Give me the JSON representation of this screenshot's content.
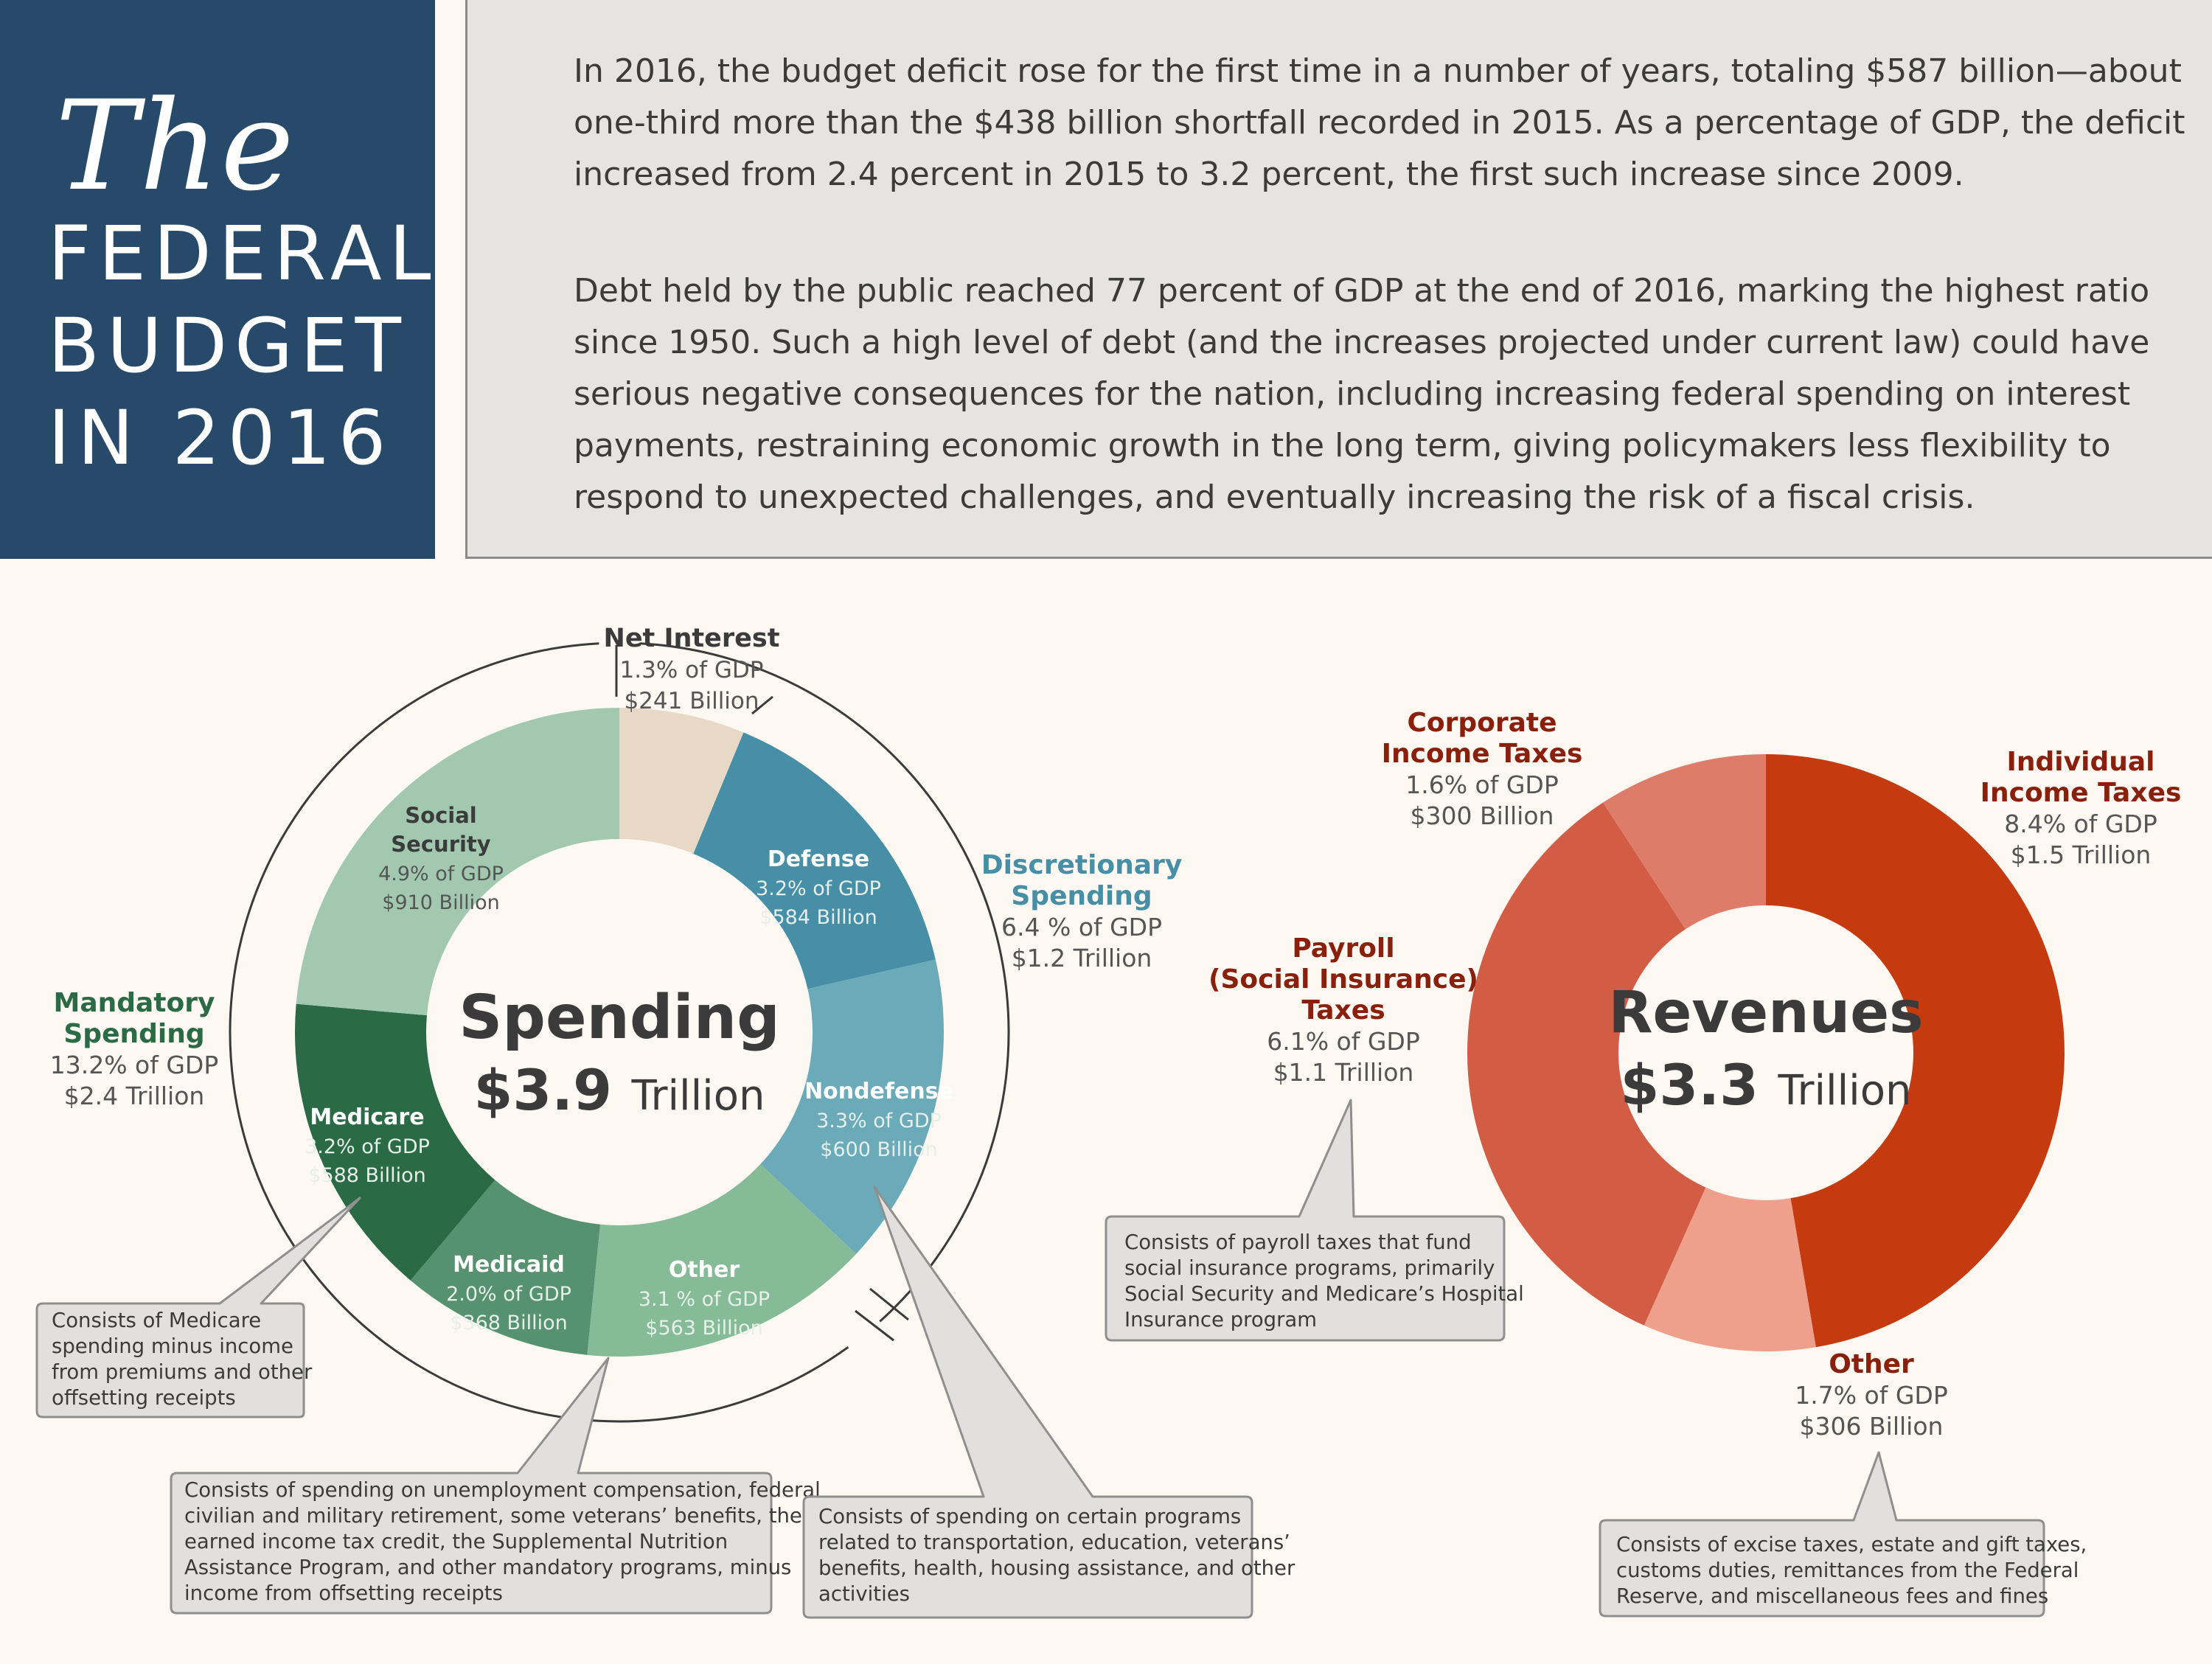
{
  "header": {
    "title_the": "The",
    "title_lines": [
      "FEDERAL",
      "BUDGET",
      "IN 2016"
    ]
  },
  "intro": {
    "paragraph1": "In 2016, the budget deficit rose for the first time in a number of years, totaling $587 billion—about one-third more than the $438 billion shortfall recorded in 2015. As a percentage of GDP, the deficit increased from 2.4 percent in 2015 to 3.2 percent, the first such increase since 2009.",
    "paragraph2": "Debt held by the public reached 77 percent of GDP at the end of 2016, marking the highest ratio since 1950. Such a high level of debt (and the increases projected under current law) could have serious negative consequences for the nation, including increasing federal spending on interest payments, restraining economic growth in the long term, giving policymakers less flexibility to respond to unexpected challenges, and eventually increasing the risk of a fiscal crisis."
  },
  "chart_data": [
    {
      "type": "donut",
      "title": "Spending",
      "total_label": "$3.9",
      "total_unit": "Trillion",
      "slices": [
        {
          "name": "Net Interest",
          "pct_gdp": 1.3,
          "pct_label": "1.3% of GDP",
          "amount_label": "$241 Billion",
          "value": 241,
          "color": "#e8d9c6"
        },
        {
          "name": "Defense",
          "pct_gdp": 3.2,
          "pct_label": "3.2% of GDP",
          "amount_label": "$584 Billion",
          "value": 584,
          "color": "#468fa6"
        },
        {
          "name": "Nondefense",
          "pct_gdp": 3.3,
          "pct_label": "3.3% of GDP",
          "amount_label": "$600 Billion",
          "value": 600,
          "color": "#6aaab9"
        },
        {
          "name": "Other",
          "pct_gdp": 3.1,
          "pct_label": "3.1 % of GDP",
          "amount_label": "$563 Billion",
          "value": 563,
          "color": "#86bb97"
        },
        {
          "name": "Medicaid",
          "pct_gdp": 2.0,
          "pct_label": "2.0% of GDP",
          "amount_label": "$368 Billion",
          "value": 368,
          "color": "#569270"
        },
        {
          "name": "Medicare",
          "pct_gdp": 3.2,
          "pct_label": "3.2% of GDP",
          "amount_label": "$588 Billion",
          "value": 588,
          "color": "#2a6b46"
        },
        {
          "name": "Social Security",
          "pct_gdp": 4.9,
          "pct_label": "4.9% of GDP",
          "amount_label": "$910 Billion",
          "value": 910,
          "color": "#a2c9b0"
        }
      ],
      "groups": [
        {
          "name": "Discretionary Spending",
          "pct_label": "6.4 % of GDP",
          "amount_label": "$1.2 Trillion",
          "color": "#468fa6"
        },
        {
          "name": "Mandatory Spending",
          "pct_label": "13.2% of GDP",
          "amount_label": "$2.4 Trillion",
          "color": "#2a6b46"
        }
      ]
    },
    {
      "type": "donut",
      "title": "Revenues",
      "total_label": "$3.3",
      "total_unit": "Trillion",
      "slices": [
        {
          "name": "Individual Income Taxes",
          "pct_gdp": 8.4,
          "pct_label": "8.4% of GDP",
          "amount_label": "$1.5 Trillion",
          "value": 1546,
          "color": "#c63a10"
        },
        {
          "name": "Other",
          "pct_gdp": 1.7,
          "pct_label": "1.7% of GDP",
          "amount_label": "$306 Billion",
          "value": 306,
          "color": "#eea08d"
        },
        {
          "name": "Payroll (Social Insurance) Taxes",
          "pct_gdp": 6.1,
          "pct_label": "6.1% of GDP",
          "amount_label": "$1.1 Trillion",
          "value": 1115,
          "color": "#d25c44"
        },
        {
          "name": "Corporate Income Taxes",
          "pct_gdp": 1.6,
          "pct_label": "1.6% of GDP",
          "amount_label": "$300 Billion",
          "value": 300,
          "color": "#df7c69"
        }
      ]
    }
  ],
  "labels": {
    "net_interest": [
      "Net Interest"
    ],
    "social_security": [
      "Social",
      "Security"
    ],
    "defense": [
      "Defense"
    ],
    "nondefense": [
      "Nondefense"
    ],
    "medicare": [
      "Medicare"
    ],
    "medicaid": [
      "Medicaid"
    ],
    "other_spending": [
      "Other"
    ],
    "discretionary": [
      "Discretionary",
      "Spending"
    ],
    "mandatory": [
      "Mandatory",
      "Spending"
    ],
    "corporate": [
      "Corporate",
      "Income Taxes"
    ],
    "individual": [
      "Individual",
      "Income Taxes"
    ],
    "payroll": [
      "Payroll",
      "(Social Insurance)",
      "Taxes"
    ],
    "other_revenue": [
      "Other"
    ]
  },
  "callouts": {
    "medicare": [
      "Consists of Medicare",
      "spending minus income",
      "from premiums and other",
      "offsetting receipts"
    ],
    "other_mandatory": [
      "Consists of spending on unemployment compensation, federal",
      "civilian and military retirement, some veterans’ benefits, the",
      "earned income tax credit, the Supplemental Nutrition",
      "Assistance Program, and other mandatory programs, minus",
      "income from offsetting receipts"
    ],
    "nondefense": [
      "Consists of spending on certain programs",
      "related to transportation, education, veterans’",
      "benefits, health, housing assistance, and other",
      "activities"
    ],
    "payroll": [
      "Consists of payroll taxes that fund",
      "social insurance programs, primarily",
      "Social Security and Medicare’s Hospital",
      "Insurance program"
    ],
    "other_revenue": [
      "Consists of excise taxes, estate and gift taxes,",
      "customs duties, remittances from the Federal",
      "Reserve, and miscellaneous fees and fines"
    ]
  }
}
